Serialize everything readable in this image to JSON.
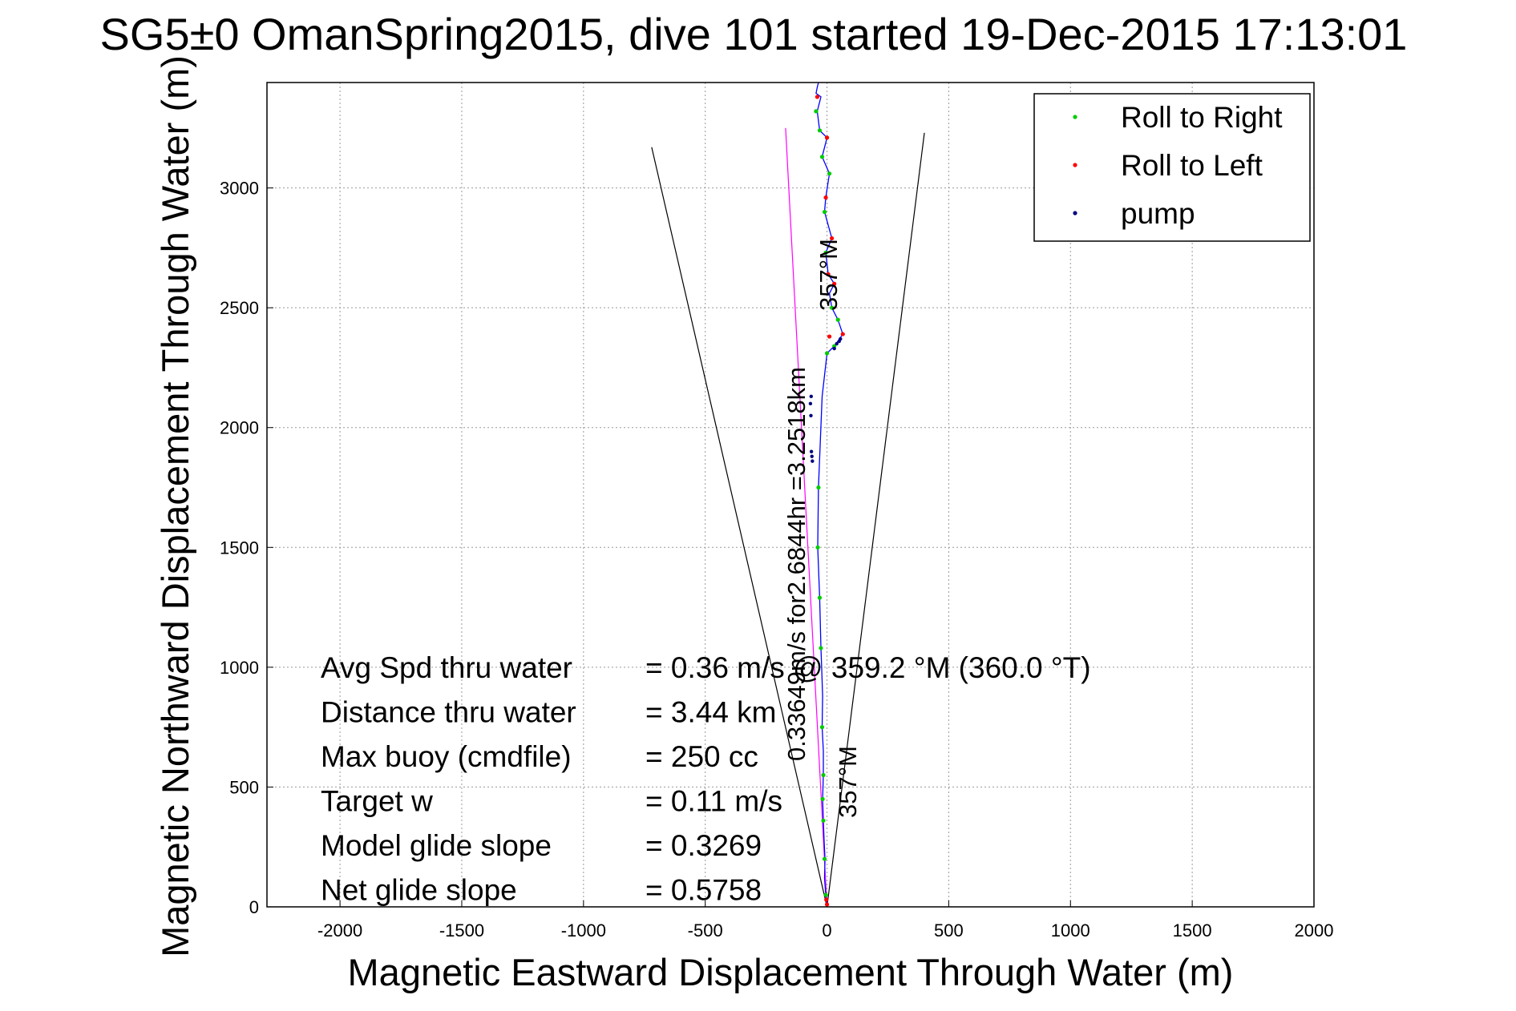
{
  "chart_data": {
    "type": "line",
    "title": "SG5±0 OmanSpring2015, dive 101 started 19-Dec-2015 17:13:01",
    "xlabel": "Magnetic Eastward Displacement Through Water (m)",
    "ylabel": "Magnetic Northward Displacement Through Water (m)",
    "xlim": [
      -2300,
      2000
    ],
    "ylim": [
      0,
      3440
    ],
    "xticks": [
      -2000,
      -1500,
      -1000,
      -500,
      0,
      500,
      1000,
      1500,
      2000
    ],
    "yticks": [
      0,
      500,
      1000,
      1500,
      2000,
      2500,
      3000
    ],
    "grid": true,
    "legend_position": "top-right",
    "legend": [
      {
        "label": "Roll to Right",
        "color": "#00cc00"
      },
      {
        "label": "Roll to Left",
        "color": "#ff0000"
      },
      {
        "label": "pump",
        "color": "#000080"
      }
    ],
    "track": {
      "color": "#0000ff",
      "x": [
        0,
        -5,
        -10,
        -8,
        -12,
        -15,
        -18,
        -15,
        -15,
        -20,
        -18,
        -22,
        -25,
        -28,
        -30,
        -38,
        -35,
        -20,
        0,
        30,
        65,
        45,
        20,
        10,
        30,
        5,
        -5,
        20,
        -10,
        -5,
        10,
        -20,
        0,
        -30,
        -40,
        -25,
        -45,
        -40,
        -35
      ],
      "y": [
        0,
        50,
        120,
        200,
        280,
        360,
        450,
        550,
        650,
        750,
        880,
        1000,
        1080,
        1200,
        1290,
        1500,
        1750,
        2130,
        2310,
        2340,
        2390,
        2450,
        2500,
        2560,
        2600,
        2640,
        2730,
        2790,
        2900,
        2960,
        3060,
        3130,
        3210,
        3240,
        3320,
        3380,
        3395,
        3420,
        3440
      ]
    },
    "roll_right_points": {
      "x": [
        -5,
        -10,
        -15,
        -18,
        -15,
        -20,
        -25,
        -30,
        -38,
        -35,
        0,
        30,
        45,
        20,
        -5,
        -10,
        10,
        -20,
        0,
        -30,
        -45
      ],
      "y": [
        50,
        200,
        360,
        450,
        550,
        750,
        1080,
        1290,
        1500,
        1750,
        2310,
        2340,
        2450,
        2500,
        2730,
        2900,
        3060,
        3130,
        3210,
        3240,
        3320
      ]
    },
    "roll_left_points": {
      "x": [
        0,
        -3,
        10,
        65,
        30,
        5,
        20,
        -5,
        0,
        -40
      ],
      "y": [
        10,
        30,
        2380,
        2390,
        2600,
        2640,
        2790,
        2960,
        3210,
        3380
      ]
    },
    "pump_points": {
      "x": [
        -60,
        -62,
        -64,
        -66,
        -68,
        -65,
        30,
        40,
        50,
        55
      ],
      "y": [
        1860,
        1880,
        1900,
        2050,
        2100,
        2130,
        2330,
        2350,
        2360,
        2370
      ]
    },
    "bearing_lines": [
      {
        "x": [
          0,
          -720
        ],
        "y": [
          0,
          3170
        ],
        "color": "#000000"
      },
      {
        "x": [
          0,
          400
        ],
        "y": [
          0,
          3230
        ],
        "color": "#000000"
      },
      {
        "x": [
          0,
          -170
        ],
        "y": [
          0,
          3250
        ],
        "color": "#ff00ff"
      }
    ],
    "annotations": {
      "heading_top": "357°M",
      "heading_bottom": "357°M",
      "current": "0.33649m/s for2.6844hr =3.2518km",
      "stats": [
        {
          "label": "Avg Spd thru water",
          "value": "=  0.36 m/s @ 359.2 °M (360.0 °T)"
        },
        {
          "label": "Distance thru water",
          "value": "=  3.44 km"
        },
        {
          "label": "Max buoy (cmdfile)",
          "value": "= 250 cc"
        },
        {
          "label": "Target w",
          "value": "= 0.11 m/s"
        },
        {
          "label": "Model glide slope",
          "value": "= 0.3269"
        },
        {
          "label": "Net glide slope",
          "value": "= 0.5758"
        }
      ]
    }
  }
}
